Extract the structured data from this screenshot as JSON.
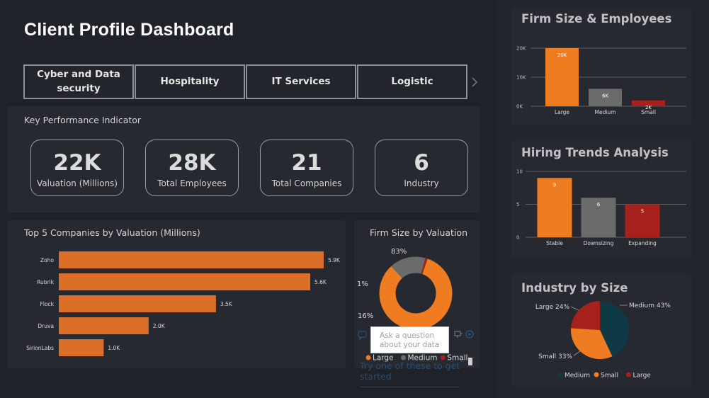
{
  "header": {
    "title": "Client Profile Dashboard"
  },
  "tabs": [
    {
      "line1": "Cyber and Data",
      "line2": "security"
    },
    {
      "line1": "Hospitality",
      "line2": ""
    },
    {
      "line1": "IT Services",
      "line2": ""
    },
    {
      "line1": "Logistic",
      "line2": ""
    }
  ],
  "tabs_next_icon": "chevron-right-icon",
  "kpi": {
    "heading": "Key Performance Indicator",
    "cards": [
      {
        "value": "22K",
        "label": "Valuation (Millions)"
      },
      {
        "value": "28K",
        "label": "Total Employees"
      },
      {
        "value": "21",
        "label": "Total Companies"
      },
      {
        "value": "6",
        "label": "Industry"
      }
    ]
  },
  "qa": {
    "placeholder_line1": "Ask a question",
    "placeholder_line2": "about your data",
    "hint": "Try one of these to get started"
  },
  "colors": {
    "orange": "#f07c22",
    "gray": "#6b6b6b",
    "red": "#a6201c",
    "teal": "#0f3a45",
    "bar_orange": "#dc6f27"
  },
  "chart_data": [
    {
      "id": "top5",
      "type": "bar",
      "orientation": "horizontal",
      "title": "Top 5 Companies by Valuation (Millions)",
      "categories": [
        "Zoho",
        "Rubrik",
        "Flock",
        "Druva",
        "SirionLabs"
      ],
      "values": [
        5900,
        5600,
        3500,
        2000,
        1000
      ],
      "data_labels": [
        "5.9K",
        "5.6K",
        "3.5K",
        "2.0K",
        "1.0K"
      ],
      "xlim": [
        0,
        5900
      ],
      "grid": false
    },
    {
      "id": "firm_valuation",
      "type": "pie",
      "donut": true,
      "title": "Firm Size by Valuation",
      "categories": [
        "Large",
        "Medium",
        "Small"
      ],
      "values": [
        83,
        16,
        1
      ],
      "data_labels": [
        "83%",
        "16%",
        "1%"
      ],
      "legend": [
        "Large",
        "Medium",
        "Small"
      ],
      "legend_position": "bottom"
    },
    {
      "id": "firm_employees",
      "type": "bar",
      "title": "Firm Size & Employees",
      "categories": [
        "Large",
        "Medium",
        "Small"
      ],
      "values": [
        20000,
        6000,
        2000
      ],
      "data_labels": [
        "20K",
        "6K",
        "2K"
      ],
      "yticks": [
        "0K",
        "10K",
        "20K"
      ],
      "ylim": [
        0,
        20000
      ],
      "grid": true
    },
    {
      "id": "hiring",
      "type": "bar",
      "title": "Hiring Trends Analysis",
      "categories": [
        "Stable",
        "Downsizing",
        "Expanding"
      ],
      "values": [
        9,
        6,
        5
      ],
      "data_labels": [
        "9",
        "6",
        "5"
      ],
      "yticks": [
        "0",
        "5",
        "10"
      ],
      "ylim": [
        0,
        10
      ],
      "grid": true
    },
    {
      "id": "industry_size",
      "type": "pie",
      "title": "Industry by Size",
      "categories": [
        "Medium",
        "Small",
        "Large"
      ],
      "values": [
        43,
        33,
        24
      ],
      "data_labels": [
        "Medium 43%",
        "Small 33%",
        "Large 24%"
      ],
      "legend": [
        "Medium",
        "Small",
        "Large"
      ],
      "legend_position": "bottom"
    }
  ]
}
